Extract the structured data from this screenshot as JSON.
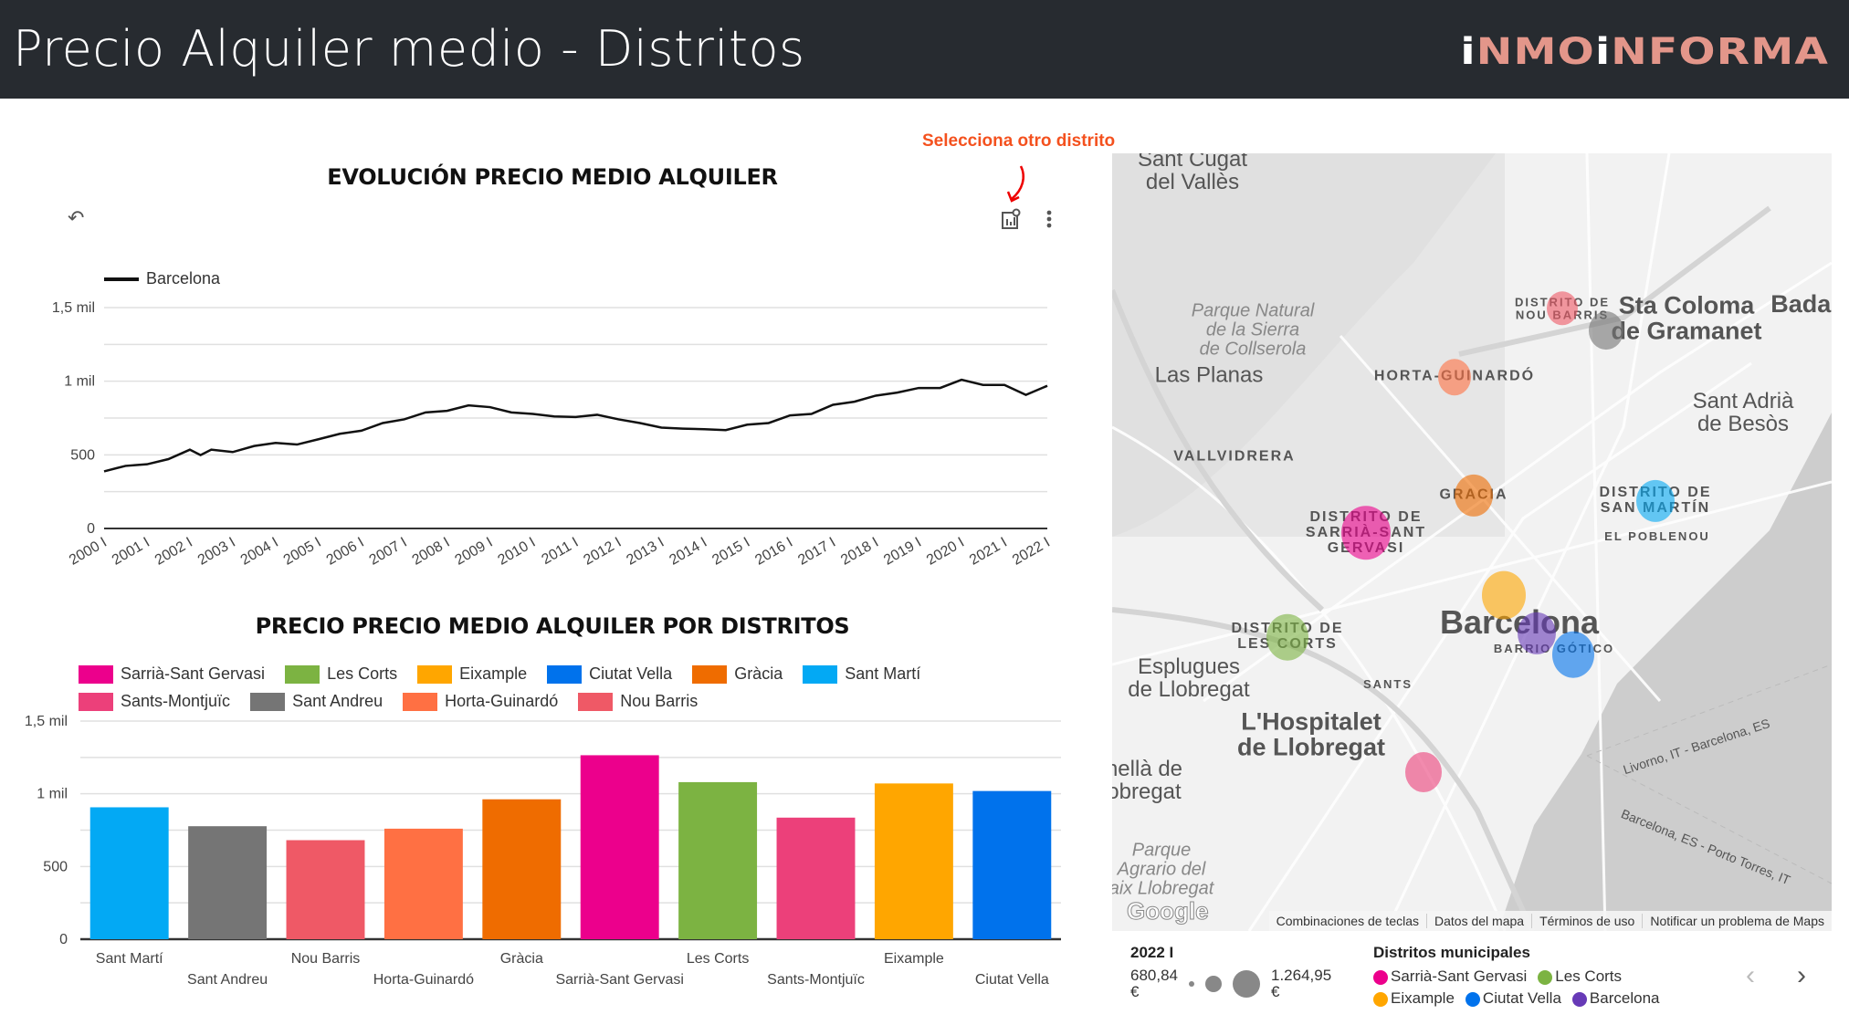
{
  "header": {
    "title": "Precio Alquiler medio - Distritos",
    "logo": "INMOINFORMA",
    "logo_parts": [
      "i",
      "NMO",
      "i",
      "NFORMA"
    ]
  },
  "hint": "Selecciona otro distrito",
  "line_chart_icons": [
    "undo-icon",
    "chart-settings-icon",
    "more-vert-icon"
  ],
  "chart_data": [
    {
      "type": "line",
      "title": "EVOLUCIÓN PRECIO MEDIO ALQUILER",
      "legend": [
        "Barcelona"
      ],
      "legend_position": "top-left",
      "ylim": [
        0,
        1500
      ],
      "yticks": [
        {
          "v": 0,
          "label": "0"
        },
        {
          "v": 500,
          "label": "500"
        },
        {
          "v": 1000,
          "label": "1 mil"
        },
        {
          "v": 1500,
          "label": "1,5 mil"
        }
      ],
      "xticks": [
        "2000 I",
        "2001 I",
        "2002 I",
        "2003 I",
        "2004 I",
        "2005 I",
        "2006 I",
        "2007 I",
        "2008 I",
        "2009 I",
        "2010 I",
        "2011 I",
        "2012 I",
        "2013 I",
        "2014 I",
        "2015 I",
        "2016 I",
        "2017 I",
        "2018 I",
        "2019 I",
        "2020 I",
        "2021 I",
        "2022 I"
      ],
      "series": [
        {
          "name": "Barcelona",
          "color": "#111111",
          "x": [
            2000,
            2000.5,
            2001,
            2001.5,
            2002,
            2002.25,
            2002.5,
            2003,
            2003.5,
            2004,
            2004.5,
            2005,
            2005.5,
            2006,
            2006.5,
            2007,
            2007.5,
            2008,
            2008.5,
            2009,
            2009.5,
            2010,
            2010.5,
            2011,
            2011.5,
            2012,
            2012.5,
            2013,
            2013.5,
            2014,
            2014.5,
            2015,
            2015.5,
            2016,
            2016.5,
            2017,
            2017.5,
            2018,
            2018.5,
            2019,
            2019.5,
            2020,
            2020.5,
            2021,
            2021.5,
            2022
          ],
          "y": [
            388,
            425,
            436,
            471,
            535,
            498,
            535,
            519,
            560,
            581,
            570,
            606,
            643,
            664,
            716,
            741,
            788,
            799,
            836,
            824,
            788,
            778,
            761,
            757,
            772,
            741,
            716,
            685,
            678,
            674,
            668,
            705,
            716,
            768,
            778,
            840,
            861,
            902,
            923,
            954,
            954,
            1010,
            975,
            975,
            907,
            969
          ]
        }
      ]
    },
    {
      "type": "bar",
      "title": "PRECIO PRECIO MEDIO ALQUILER POR DISTRITOS",
      "ylim": [
        0,
        1500
      ],
      "yticks": [
        {
          "v": 0,
          "label": "0"
        },
        {
          "v": 500,
          "label": "500"
        },
        {
          "v": 1000,
          "label": "1 mil"
        },
        {
          "v": 1500,
          "label": "1,5 mil"
        }
      ],
      "categories": [
        "Sant Martí",
        "Sant Andreu",
        "Nou Barris",
        "Horta-Guinardó",
        "Gràcia",
        "Sarrià-Sant Gervasi",
        "Les Corts",
        "Sants-Montjuïc",
        "Eixample",
        "Ciutat Vella"
      ],
      "values": [
        907,
        777,
        681,
        760,
        962,
        1265,
        1080,
        836,
        1071,
        1019
      ],
      "colors": [
        "#03a9f4",
        "#757575",
        "#ef5966",
        "#ff7043",
        "#ef6c00",
        "#ec008c",
        "#7cb342",
        "#ec407a",
        "#ffa600",
        "#0072ec"
      ],
      "legend": [
        {
          "label": "Sarrià-Sant Gervasi",
          "color": "#ec008c"
        },
        {
          "label": "Les Corts",
          "color": "#7cb342"
        },
        {
          "label": "Eixample",
          "color": "#ffa600"
        },
        {
          "label": "Ciutat Vella",
          "color": "#0072ec"
        },
        {
          "label": "Gràcia",
          "color": "#ef6c00"
        },
        {
          "label": "Sant Martí",
          "color": "#03a9f4"
        },
        {
          "label": "Sants-Montjuïc",
          "color": "#ec407a"
        },
        {
          "label": "Sant Andreu",
          "color": "#757575"
        },
        {
          "label": "Horta-Guinardó",
          "color": "#ff7043"
        },
        {
          "label": "Nou Barris",
          "color": "#ef5966"
        }
      ]
    }
  ],
  "map": {
    "labels": [
      "Sant Cugat\ndel Vallès",
      "Parque Natural\nde la Sierra\nde Collserola",
      "Las Planas",
      "VALLVIDRERA",
      "DISTRITO DE\nNOU BARRIS",
      "Sta Coloma\nde Gramanet",
      "Badal",
      "HORTA-GUINARDÓ",
      "Sant Adrià\nde Besòs",
      "GRACIA",
      "DISTRITO DE\nSAN MARTÍN",
      "EL POBLENOU",
      "DISTRITO DE\nSARRIÀ-SANT\nGERVASI",
      "Barcelona",
      "BARRIO GÓTICO",
      "DISTRITO DE\nLES CORTS",
      "Esplugues\nde Llobregat",
      "SANTS",
      "L'Hospitalet\nde Llobregat",
      "nellà de\nobregat",
      "Parque\nAgrario del\naix Llobregat",
      "Livorno, IT - Barcelona, ES",
      "Barcelona, ES - Porto Torres, IT"
    ],
    "bubbles": [
      {
        "district": "Nou Barris",
        "color": "#ef5966"
      },
      {
        "district": "Sant Andreu",
        "color": "#757575"
      },
      {
        "district": "Horta-Guinardó",
        "color": "#ff7043"
      },
      {
        "district": "Gràcia",
        "color": "#ef6c00"
      },
      {
        "district": "Sant Martí",
        "color": "#03a9f4"
      },
      {
        "district": "Sarrià-Sant Gervasi",
        "color": "#ec008c"
      },
      {
        "district": "Eixample",
        "color": "#ffa600"
      },
      {
        "district": "Barcelona",
        "color": "#673ab7"
      },
      {
        "district": "Ciutat Vella",
        "color": "#0072ec"
      },
      {
        "district": "Les Corts",
        "color": "#7cb342"
      },
      {
        "district": "Sants-Montjuïc",
        "color": "#ec407a"
      }
    ],
    "google": "Google",
    "footer_links": [
      "Combinaciones de teclas",
      "Datos del mapa",
      "Términos de uso",
      "Notificar un problema de Maps"
    ]
  },
  "map_legend": {
    "period": "2022 I",
    "min": "680,84\n€",
    "max": "1.264,95\n€",
    "title": "Distritos municipales",
    "items": [
      {
        "label": "Sarrià-Sant Gervasi",
        "color": "#ec008c"
      },
      {
        "label": "Les Corts",
        "color": "#7cb342"
      },
      {
        "label": "Eixample",
        "color": "#ffa600"
      },
      {
        "label": "Ciutat Vella",
        "color": "#0072ec"
      },
      {
        "label": "Barcelona",
        "color": "#673ab7"
      }
    ],
    "prev": "‹",
    "next": "›"
  }
}
